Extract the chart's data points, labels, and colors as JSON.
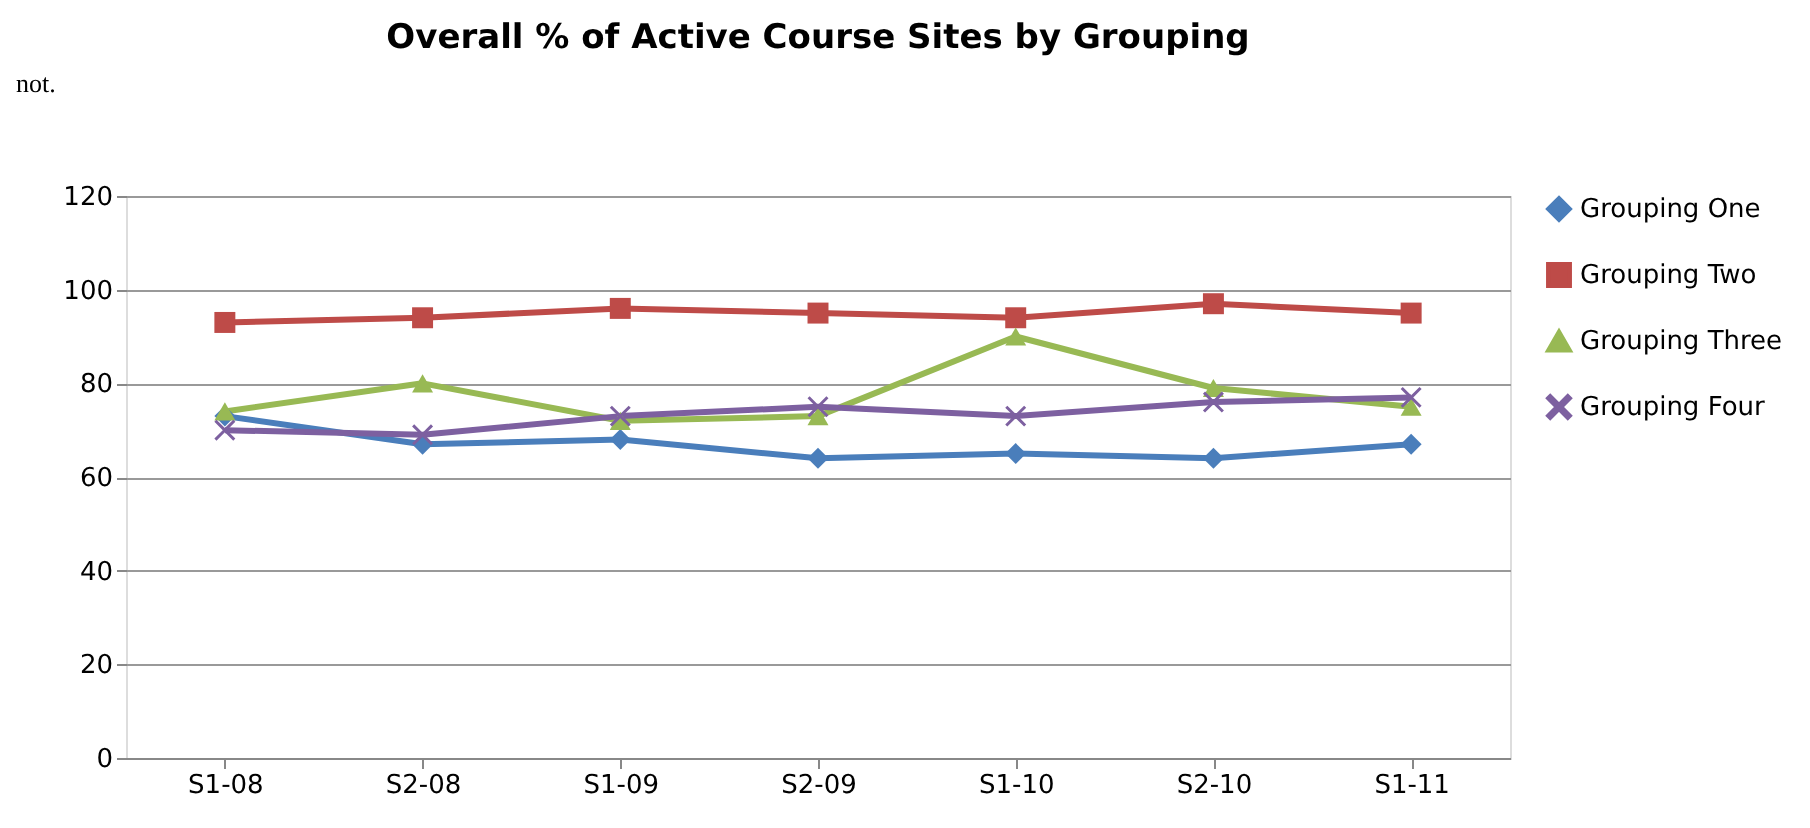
{
  "chart_data": {
    "type": "line",
    "title": "Overall % of Active Course Sites by Grouping",
    "categories": [
      "S1-08",
      "S2-08",
      "S1-09",
      "S2-09",
      "S1-10",
      "S2-10",
      "S1-11"
    ],
    "series": [
      {
        "name": "Grouping One",
        "color": "#4a7ebb",
        "marker": "diamond",
        "values": [
          73,
          67,
          68,
          64,
          65,
          64,
          67
        ]
      },
      {
        "name": "Grouping Two",
        "color": "#be4b48",
        "marker": "square",
        "values": [
          93,
          94,
          96,
          95,
          94,
          97,
          95
        ]
      },
      {
        "name": "Grouping Three",
        "color": "#98b954",
        "marker": "triangle",
        "values": [
          74,
          80,
          72,
          73,
          90,
          79,
          75
        ]
      },
      {
        "name": "Grouping Four",
        "color": "#7d60a0",
        "marker": "cross",
        "values": [
          70,
          69,
          73,
          75,
          73,
          76,
          77
        ]
      }
    ],
    "ylim": [
      0,
      120
    ],
    "yticks": [
      0,
      20,
      40,
      60,
      80,
      100,
      120
    ],
    "grid": "y",
    "legend": "right",
    "line_style": "solid",
    "annotations": [
      "not."
    ]
  }
}
